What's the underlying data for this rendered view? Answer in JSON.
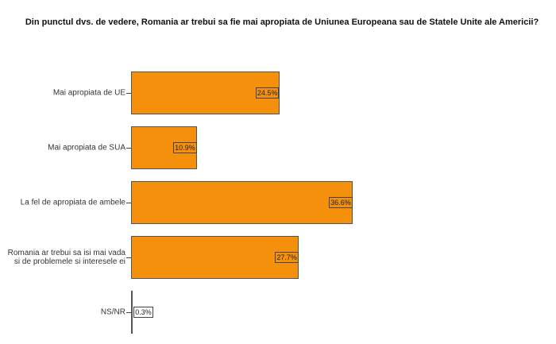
{
  "chart_data": {
    "type": "bar",
    "orientation": "horizontal",
    "title": "Din punctul dvs. de vedere, Romania ar trebui sa fie mai apropiata de Uniunea Europeana sau de Statele Unite ale Americii?",
    "categories": [
      "Mai apropiata de UE",
      "Mai apropiata de SUA",
      "La fel de apropiata de ambele",
      "Romania ar trebui sa isi mai vada si de problemele si interesele ei",
      "NS/NR"
    ],
    "values": [
      24.5,
      10.9,
      36.6,
      27.7,
      0.3
    ],
    "value_labels": [
      "24.5%",
      "10.9%",
      "36.6%",
      "27.7%",
      "0.3%"
    ],
    "color": "#f5900c"
  }
}
